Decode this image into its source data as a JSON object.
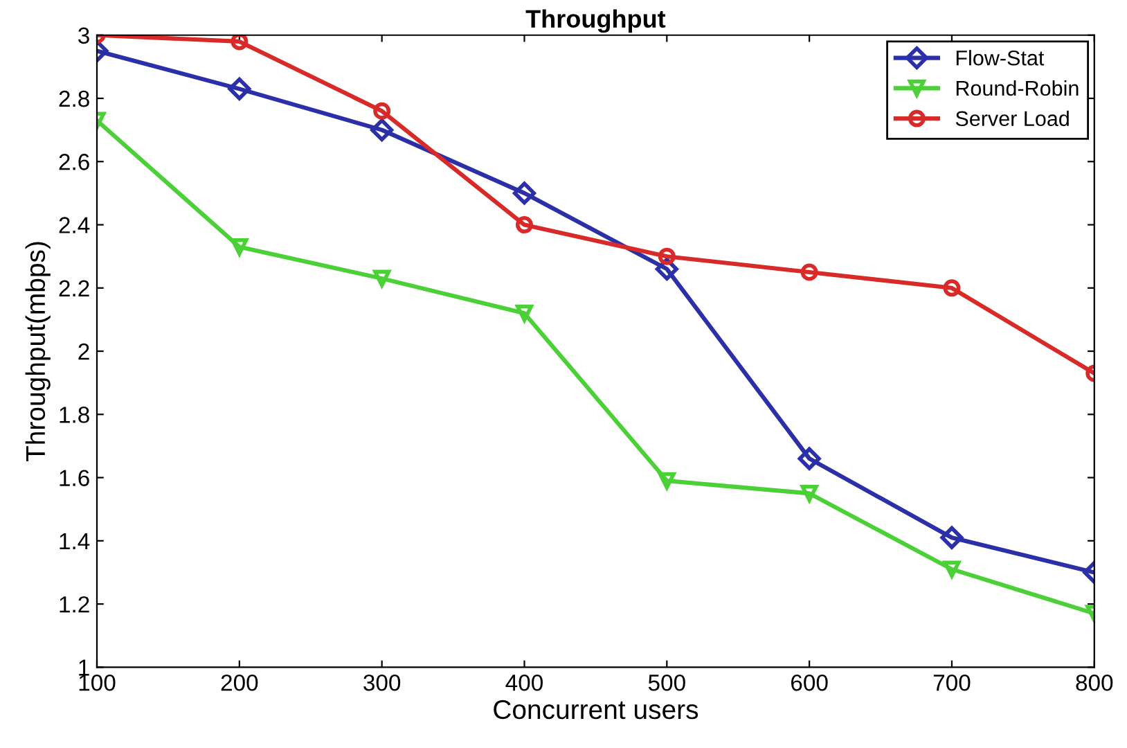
{
  "chart_data": {
    "type": "line",
    "title": "Throughput",
    "xlabel": "Concurrent users",
    "ylabel": "Throughput(mbps)",
    "x": [
      100,
      200,
      300,
      400,
      500,
      600,
      700,
      800
    ],
    "series": [
      {
        "name": "Flow-Stat",
        "color": "#2b2fa8",
        "marker": "diamond",
        "values": [
          2.95,
          2.83,
          2.7,
          2.5,
          2.26,
          1.66,
          1.41,
          1.3
        ]
      },
      {
        "name": "Round-Robin",
        "color": "#4cd038",
        "marker": "triangle",
        "values": [
          2.73,
          2.33,
          2.23,
          2.12,
          1.59,
          1.55,
          1.31,
          1.17
        ]
      },
      {
        "name": "Server Load",
        "color": "#d82a28",
        "marker": "circle",
        "values": [
          3.0,
          2.98,
          2.76,
          2.4,
          2.3,
          2.25,
          2.2,
          1.93
        ]
      }
    ],
    "xlim": [
      100,
      800
    ],
    "xticks": [
      100,
      200,
      300,
      400,
      500,
      600,
      700,
      800
    ],
    "ylim": [
      1,
      3
    ],
    "yticks": [
      1,
      1.2,
      1.4,
      1.6,
      1.8,
      2,
      2.2,
      2.4,
      2.6,
      2.8,
      3
    ],
    "legend": "top right",
    "line_style": "solid"
  }
}
